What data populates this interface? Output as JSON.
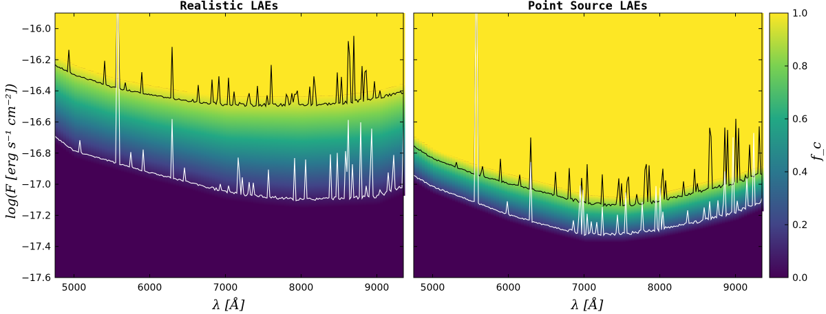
{
  "figure": {
    "ylabel": "log(F [erg s⁻¹ cm⁻²])",
    "xlabel": "λ [Å]",
    "colorbar_label": "f_c"
  },
  "chart_data": [
    {
      "type": "heatmap",
      "title": "Realistic LAEs",
      "xlim": [
        4750,
        9350
      ],
      "ylim": [
        -17.6,
        -15.9
      ],
      "xticks": [
        5000,
        6000,
        7000,
        8000,
        9000
      ],
      "yticks": [
        -17.6,
        -17.4,
        -17.2,
        -17.0,
        -16.8,
        -16.6,
        -16.4,
        -16.2,
        -16.0
      ],
      "colormap": "viridis",
      "series": [
        {
          "color": "#000000",
          "x": [
            4750,
            5000,
            5500,
            6000,
            6500,
            7000,
            7500,
            8000,
            8500,
            9000,
            9300
          ],
          "y": [
            -16.24,
            -16.3,
            -16.38,
            -16.43,
            -16.47,
            -16.5,
            -16.5,
            -16.5,
            -16.49,
            -16.46,
            -16.42
          ]
        },
        {
          "color": "#ffffff",
          "x": [
            4750,
            5000,
            5500,
            6000,
            6500,
            7000,
            7500,
            8000,
            8500,
            9000,
            9300
          ],
          "y": [
            -16.7,
            -16.79,
            -16.86,
            -16.93,
            -16.99,
            -17.06,
            -17.09,
            -17.11,
            -17.1,
            -17.09,
            -17.03
          ]
        }
      ]
    },
    {
      "type": "heatmap",
      "title": "Point Source LAEs",
      "xlim": [
        4750,
        9350
      ],
      "ylim": [
        -17.6,
        -15.9
      ],
      "xticks": [
        5000,
        6000,
        7000,
        8000,
        9000
      ],
      "yticks": [
        -17.6,
        -17.4,
        -17.2,
        -17.0,
        -16.8,
        -16.6,
        -16.4,
        -16.2,
        -16.0
      ],
      "colormap": "viridis",
      "series": [
        {
          "color": "#000000",
          "x": [
            4750,
            5000,
            5500,
            6000,
            6500,
            7000,
            7500,
            8000,
            8500,
            9000,
            9300
          ],
          "y": [
            -16.76,
            -16.84,
            -16.93,
            -17.0,
            -17.06,
            -17.13,
            -17.15,
            -17.12,
            -17.06,
            -17.0,
            -16.95
          ]
        },
        {
          "color": "#ffffff",
          "x": [
            4750,
            5000,
            5500,
            6000,
            6500,
            7000,
            7500,
            8000,
            8500,
            9000,
            9300
          ],
          "y": [
            -16.95,
            -17.02,
            -17.11,
            -17.2,
            -17.27,
            -17.33,
            -17.33,
            -17.3,
            -17.25,
            -17.19,
            -17.13
          ]
        }
      ]
    }
  ],
  "colorbar": {
    "range": [
      0.0,
      1.0
    ],
    "ticks": [
      0.0,
      0.2,
      0.4,
      0.6,
      0.8,
      1.0
    ],
    "tick_labels": [
      "0.0",
      "0.2",
      "0.4",
      "0.6",
      "0.8",
      "1.0"
    ],
    "colors": [
      "#440154",
      "#414487",
      "#2a788e",
      "#22a884",
      "#7ad151",
      "#fde725"
    ]
  }
}
